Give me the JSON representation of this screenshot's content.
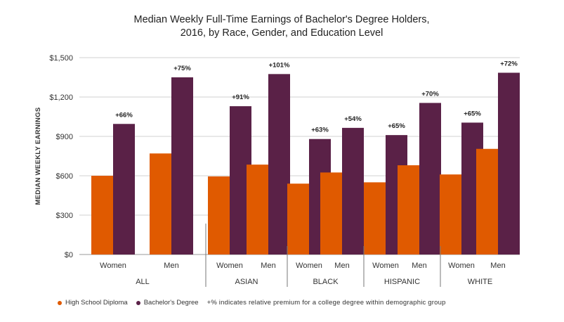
{
  "chart_data": {
    "type": "bar",
    "title": "Median Weekly Full-Time Earnings of Bachelor's Degree Holders,",
    "subtitle": "2016, by Race, Gender, and Education Level",
    "ylabel": "MEDIAN WEEKLY EARNINGS",
    "ylim": [
      0,
      1500
    ],
    "yticks": [
      "$0",
      "$300",
      "$600",
      "$900",
      "$1,200",
      "$1,500"
    ],
    "colors": {
      "high_school": "#e05a00",
      "bachelors": "#5a2147"
    },
    "groups": [
      {
        "name": "ALL",
        "categories": [
          {
            "label": "Women",
            "high_school": 600,
            "bachelors": 995,
            "premium": "+66%"
          },
          {
            "label": "Men",
            "high_school": 770,
            "bachelors": 1350,
            "premium": "+75%"
          }
        ]
      },
      {
        "name": "ASIAN",
        "categories": [
          {
            "label": "Women",
            "high_school": 595,
            "bachelors": 1130,
            "premium": "+91%"
          },
          {
            "label": "Men",
            "high_school": 685,
            "bachelors": 1375,
            "premium": "+101%"
          }
        ]
      },
      {
        "name": "BLACK",
        "categories": [
          {
            "label": "Women",
            "high_school": 540,
            "bachelors": 880,
            "premium": "+63%"
          },
          {
            "label": "Men",
            "high_school": 625,
            "bachelors": 965,
            "premium": "+54%"
          }
        ]
      },
      {
        "name": "HISPANIC",
        "categories": [
          {
            "label": "Women",
            "high_school": 550,
            "bachelors": 910,
            "premium": "+65%"
          },
          {
            "label": "Men",
            "high_school": 680,
            "bachelors": 1155,
            "premium": "+70%"
          }
        ]
      },
      {
        "name": "WHITE",
        "categories": [
          {
            "label": "Women",
            "high_school": 610,
            "bachelors": 1005,
            "premium": "+65%"
          },
          {
            "label": "Men",
            "high_school": 805,
            "bachelors": 1385,
            "premium": "+72%"
          }
        ]
      }
    ],
    "series": [
      {
        "name": "High School Diploma",
        "key": "high_school"
      },
      {
        "name": "Bachelor's Degree",
        "key": "bachelors"
      }
    ]
  },
  "legend": {
    "hs_label": "High School Diploma",
    "ba_label": "Bachelor's Degree",
    "note": "+% indicates relative premium for a college degree within demographic group"
  }
}
